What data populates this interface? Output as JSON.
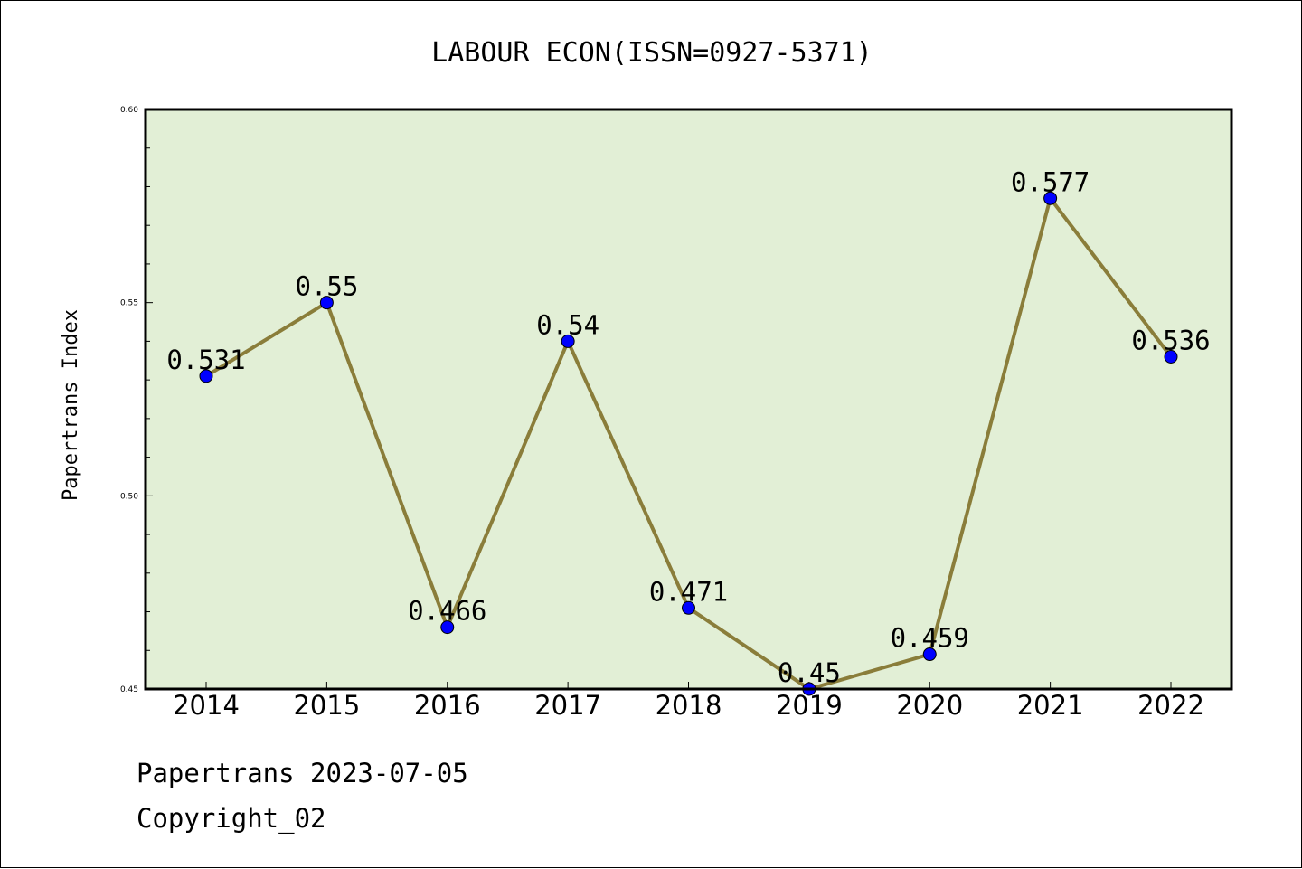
{
  "chart_data": {
    "type": "line",
    "title": "LABOUR ECON(ISSN=0927-5371)",
    "xlabel": "",
    "ylabel": "Papertrans Index",
    "categories": [
      "2014",
      "2015",
      "2016",
      "2017",
      "2018",
      "2019",
      "2020",
      "2021",
      "2022"
    ],
    "values": [
      0.531,
      0.55,
      0.466,
      0.54,
      0.471,
      0.45,
      0.459,
      0.577,
      0.536
    ],
    "data_labels": [
      "0.531",
      "0.55",
      "0.466",
      "0.54",
      "0.471",
      "0.45",
      "0.459",
      "0.577",
      "0.536"
    ],
    "ylim": [
      0.45,
      0.6
    ],
    "yticks": [
      "0.45",
      "0.50",
      "0.55",
      "0.60"
    ],
    "grid": false,
    "colors": {
      "plot_background": "#e2efd6",
      "line": "#8a7d3a",
      "marker": "#0000ff"
    }
  },
  "footer": {
    "line1": "Papertrans 2023-07-05",
    "line2": "Copyright_02"
  }
}
